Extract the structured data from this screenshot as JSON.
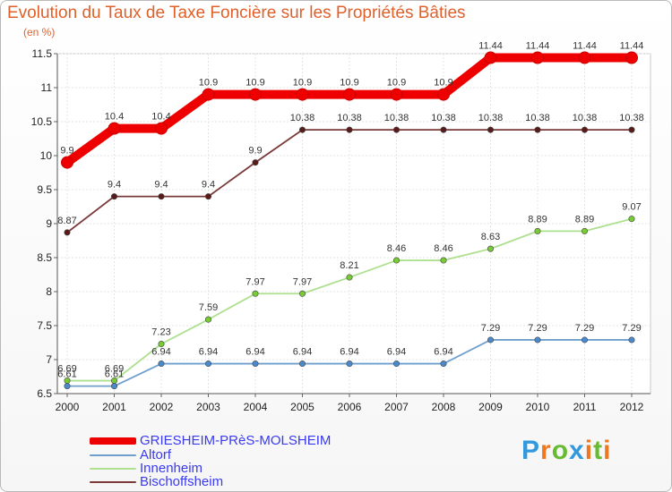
{
  "title": "Evolution du Taux de Taxe Foncière sur les Propriétés Bâties",
  "unit": "(en %)",
  "logo": {
    "text": "Proxiti",
    "colors": [
      "#3399dd",
      "#ee7722",
      "#66bb33",
      "#3399dd",
      "#ee7722",
      "#66bb33",
      "#ee7722"
    ]
  },
  "chart_data": {
    "type": "line",
    "x": [
      "2000",
      "2001",
      "2002",
      "2003",
      "2004",
      "2005",
      "2006",
      "2007",
      "2008",
      "2009",
      "2010",
      "2011",
      "2012"
    ],
    "ylim": [
      6.5,
      11.5
    ],
    "yticks": [
      6.5,
      7,
      7.5,
      8,
      8.5,
      9,
      9.5,
      10,
      10.5,
      11,
      11.5
    ],
    "ytick_labels": [
      "6.5",
      "7",
      "7.5",
      "8",
      "8.5",
      "9",
      "9.5",
      "10",
      "10.5",
      "11",
      "11.5"
    ],
    "legend_position": "bottom-left",
    "series": [
      {
        "name": "GRIESHEIM-PRèS-MOLSHEIM",
        "color": "#ee0000",
        "values": [
          9.9,
          10.4,
          10.4,
          10.9,
          10.9,
          10.9,
          10.9,
          10.9,
          10.9,
          11.44,
          11.44,
          11.44,
          11.44
        ],
        "labels": [
          "9.9",
          "10.4",
          "10.4",
          "10.9",
          "10.9",
          "10.9",
          "10.9",
          "10.9",
          "10.9",
          "11.44",
          "11.44",
          "11.44",
          "11.44"
        ]
      },
      {
        "name": "Altorf",
        "color": "#6f9fcc",
        "marker": "#4a8acc",
        "values": [
          6.61,
          6.61,
          6.94,
          6.94,
          6.94,
          6.94,
          6.94,
          6.94,
          6.94,
          7.29,
          7.29,
          7.29,
          7.29
        ],
        "labels": [
          "6.61",
          "6.61",
          "6.94",
          "6.94",
          "6.94",
          "6.94",
          "6.94",
          "6.94",
          "6.94",
          "7.29",
          "7.29",
          "7.29",
          "7.29"
        ]
      },
      {
        "name": "Innenheim",
        "color": "#aee090",
        "marker": "#77cc33",
        "values": [
          6.69,
          6.69,
          7.23,
          7.59,
          7.97,
          7.97,
          8.21,
          8.46,
          8.46,
          8.63,
          8.89,
          8.89,
          9.07
        ],
        "labels": [
          "6.69",
          "6.69",
          "7.23",
          "7.59",
          "7.97",
          "7.97",
          "8.21",
          "8.46",
          "8.46",
          "8.63",
          "8.89",
          "8.89",
          "9.07"
        ]
      },
      {
        "name": "Bischoffsheim",
        "color": "#7a3a3a",
        "marker": "#5a1a1a",
        "values": [
          8.87,
          9.4,
          9.4,
          9.4,
          9.9,
          10.38,
          10.38,
          10.38,
          10.38,
          10.38,
          10.38,
          10.38,
          10.38
        ],
        "labels": [
          "8.87",
          "9.4",
          "9.4",
          "9.4",
          "9.9",
          "10.38",
          "10.38",
          "10.38",
          "10.38",
          "10.38",
          "10.38",
          "10.38",
          "10.38"
        ]
      }
    ]
  }
}
